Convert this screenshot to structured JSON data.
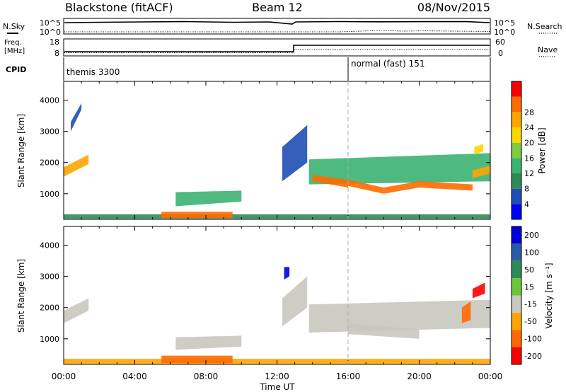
{
  "header": {
    "station": "Blackstone (fitACF)",
    "beam": "Beam 12",
    "date": "08/Nov/2015"
  },
  "summary_panels": {
    "nsky": {
      "left_label": "N.Sky",
      "ticks": [
        "10^5",
        "10^0"
      ]
    },
    "nsearch": {
      "right_label": "N.Search",
      "ticks": [
        "10^5",
        "10^0"
      ]
    },
    "freq": {
      "label_line1": "Freq.",
      "label_line2": "[MHz]",
      "ticks": [
        "18",
        "8"
      ]
    },
    "nave": {
      "right_label": "Nave",
      "ticks": [
        "60",
        "0"
      ]
    },
    "cpid": {
      "label": "CPID",
      "segments": [
        {
          "name": "themis 3300",
          "start_hour": 0
        },
        {
          "name": "normal (fast) 151",
          "start_hour": 16
        }
      ]
    }
  },
  "colors": {
    "power": [
      "#0000ff",
      "#1e4fb4",
      "#2e8b57",
      "#3cb371",
      "#7fcc3f",
      "#ffd700",
      "#ffa500",
      "#ff6a00",
      "#ff0000"
    ],
    "velocity": [
      "#0000dc",
      "#2a5aa8",
      "#2e8b57",
      "#6cc63a",
      "#c8c8c0",
      "#ffa500",
      "#ff6a00",
      "#ff0000"
    ],
    "ground_scatter": "#c8c8c0"
  },
  "chart_data": [
    {
      "type": "heatmap",
      "name": "power",
      "x_unit": "hour UT",
      "xlim": [
        0,
        24
      ],
      "ylim": [
        180,
        4600
      ],
      "ylabel": "Slant Range [km]",
      "yticks": [
        1000,
        2000,
        3000,
        4000
      ],
      "colorbar": {
        "label": "Power [dB]",
        "ticks": [
          "4",
          "8",
          "12",
          "16",
          "20",
          "24",
          "28"
        ],
        "range": [
          0,
          32
        ]
      },
      "regions": [
        {
          "t": [
            0.0,
            1.4
          ],
          "r_start": [
            1550,
            1950
          ],
          "r_end": [
            1850,
            2250
          ],
          "value": 22
        },
        {
          "t": [
            0.4,
            1.0
          ],
          "r_start": [
            3000,
            3700
          ],
          "r_end": [
            3300,
            3900
          ],
          "value": 6
        },
        {
          "t": [
            0.0,
            24.0
          ],
          "r_start": [
            200,
            200
          ],
          "r_end": [
            340,
            340
          ],
          "value": 10
        },
        {
          "t": [
            5.5,
            9.5
          ],
          "r_start": [
            220,
            220
          ],
          "r_end": [
            420,
            420
          ],
          "value": 26
        },
        {
          "t": [
            6.3,
            10.0
          ],
          "r_start": [
            600,
            750
          ],
          "r_end": [
            1050,
            1100
          ],
          "value": 14
        },
        {
          "t": [
            12.3,
            13.7
          ],
          "r_start": [
            1400,
            2000
          ],
          "r_end": [
            2500,
            3200
          ],
          "value": 7
        },
        {
          "t": [
            13.8,
            24.0
          ],
          "r_start": [
            1300,
            1400
          ],
          "r_end": [
            2100,
            2300
          ],
          "value": 14
        },
        {
          "t": [
            14.0,
            16.0
          ],
          "r_start": [
            1400,
            1200
          ],
          "r_end": [
            1600,
            1450
          ],
          "value": 26
        },
        {
          "t": [
            16.0,
            18.0
          ],
          "r_start": [
            1250,
            1000
          ],
          "r_end": [
            1450,
            1200
          ],
          "value": 27
        },
        {
          "t": [
            18.0,
            20.0
          ],
          "r_start": [
            1000,
            1200
          ],
          "r_end": [
            1200,
            1400
          ],
          "value": 27
        },
        {
          "t": [
            20.0,
            23.0
          ],
          "r_start": [
            1200,
            1100
          ],
          "r_end": [
            1400,
            1300
          ],
          "value": 28
        },
        {
          "t": [
            23.0,
            24.0
          ],
          "r_start": [
            1500,
            1650
          ],
          "r_end": [
            1750,
            1900
          ],
          "value": 24
        },
        {
          "t": [
            23.1,
            23.6
          ],
          "r_start": [
            2250,
            2350
          ],
          "r_end": [
            2500,
            2600
          ],
          "value": 18
        }
      ]
    },
    {
      "type": "heatmap",
      "name": "velocity",
      "x_unit": "hour UT",
      "xlim": [
        0,
        24
      ],
      "ylim": [
        180,
        4600
      ],
      "ylabel": "Slant Range [km]",
      "xlabel": "Time UT",
      "yticks": [
        1000,
        2000,
        3000,
        4000
      ],
      "xticks": [
        "00:00",
        "04:00",
        "08:00",
        "12:00",
        "16:00",
        "20:00",
        "00:00"
      ],
      "colorbar": {
        "label": "Velocity [m s⁻¹]",
        "ticks": [
          "200",
          "100",
          "50",
          "15",
          "-15",
          "-50",
          "-100",
          "-200"
        ]
      },
      "regions": [
        {
          "t": [
            0.0,
            1.4
          ],
          "r_start": [
            1500,
            1900
          ],
          "r_end": [
            1900,
            2300
          ],
          "value": 0
        },
        {
          "t": [
            0.0,
            24.0
          ],
          "r_start": [
            200,
            200
          ],
          "r_end": [
            360,
            360
          ],
          "value": -40
        },
        {
          "t": [
            5.5,
            9.5
          ],
          "r_start": [
            220,
            220
          ],
          "r_end": [
            460,
            460
          ],
          "value": -60
        },
        {
          "t": [
            6.3,
            10.0
          ],
          "r_start": [
            650,
            750
          ],
          "r_end": [
            1050,
            1100
          ],
          "value": 0
        },
        {
          "t": [
            12.3,
            13.7
          ],
          "r_start": [
            1400,
            2000
          ],
          "r_end": [
            2300,
            3000
          ],
          "value": 0
        },
        {
          "t": [
            12.4,
            12.7
          ],
          "r_start": [
            2900,
            3000
          ],
          "r_end": [
            3300,
            3300
          ],
          "value": 200
        },
        {
          "t": [
            13.8,
            24.0
          ],
          "r_start": [
            1200,
            1350
          ],
          "r_end": [
            2100,
            2250
          ],
          "value": 0
        },
        {
          "t": [
            16.0,
            20.0
          ],
          "r_start": [
            1150,
            1000
          ],
          "r_end": [
            1500,
            1300
          ],
          "value": 0
        },
        {
          "t": [
            22.4,
            22.9
          ],
          "r_start": [
            1500,
            1600
          ],
          "r_end": [
            2000,
            2200
          ],
          "value": -50
        },
        {
          "t": [
            23.0,
            23.7
          ],
          "r_start": [
            2300,
            2450
          ],
          "r_end": [
            2600,
            2800
          ],
          "value": -200
        }
      ]
    }
  ]
}
